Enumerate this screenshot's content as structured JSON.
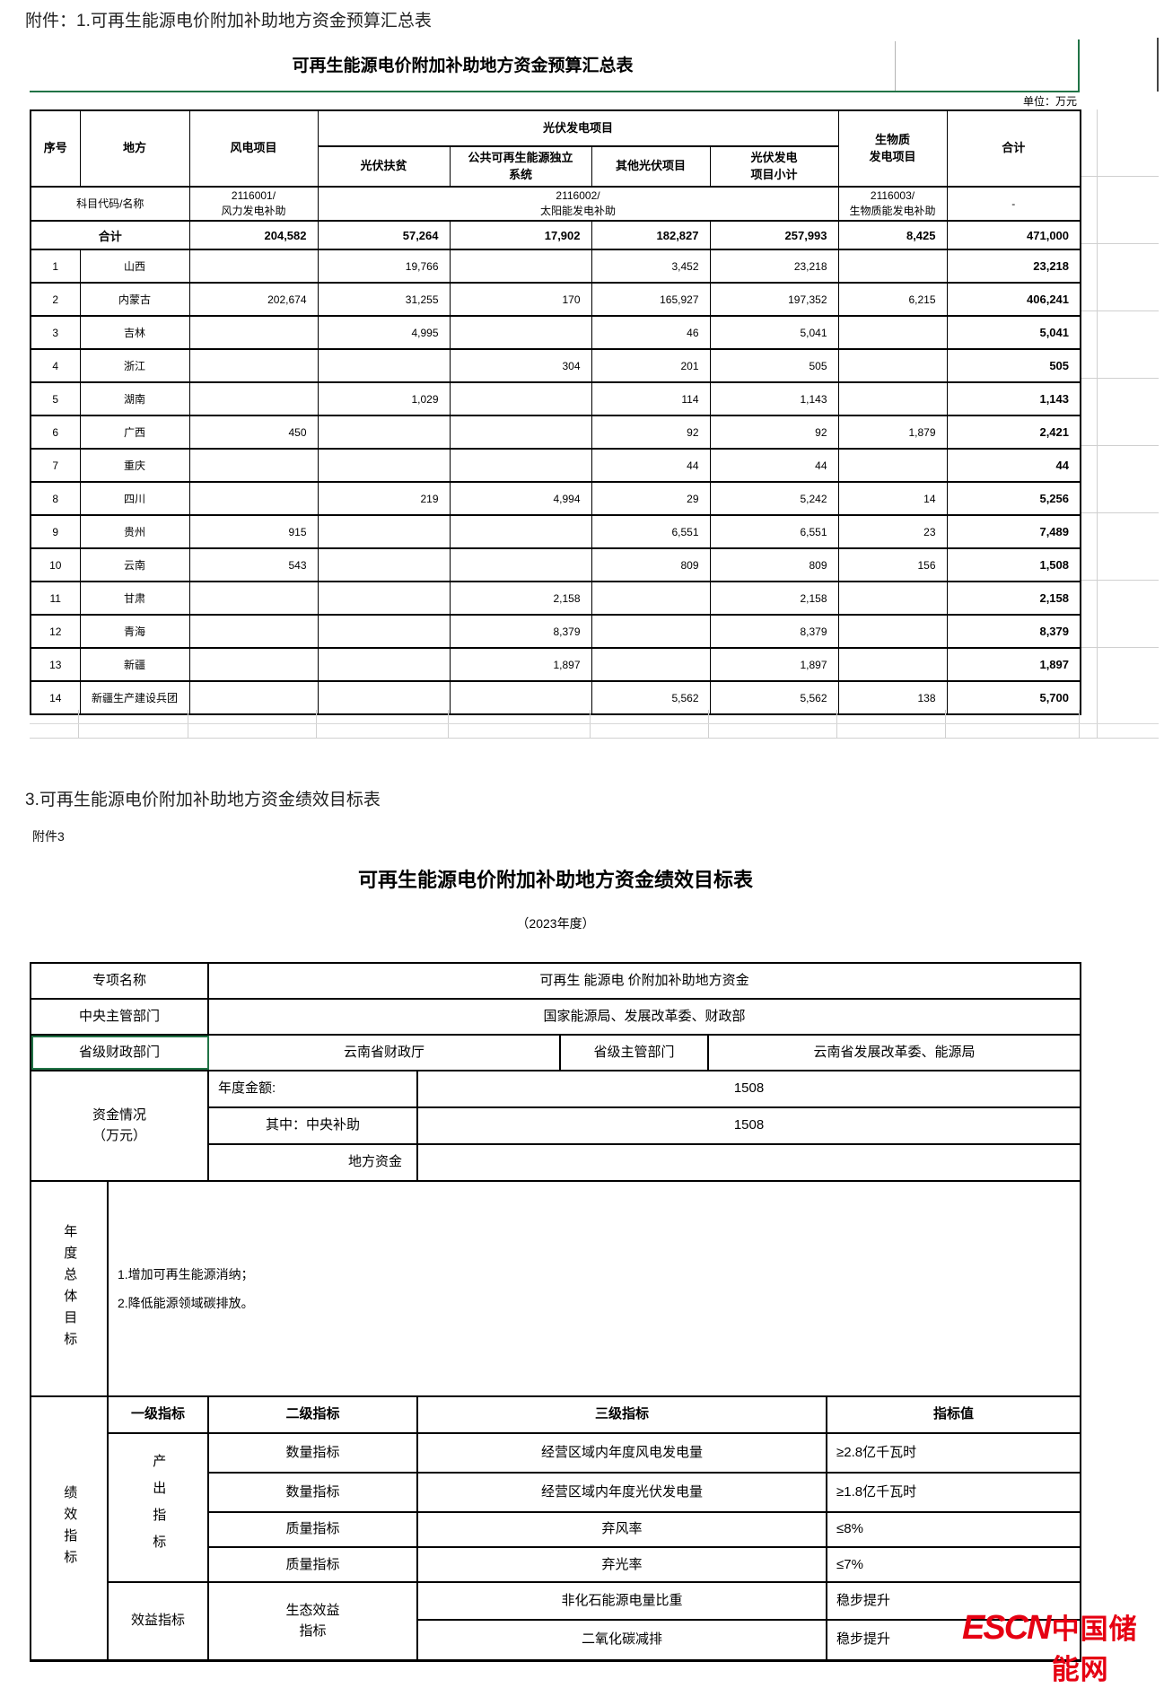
{
  "colors": {
    "excel_green": "#217346",
    "logo_red": "#e60012"
  },
  "page": {
    "attachment_heading": "附件：1.可再生能源电价附加补助地方资金预算汇总表",
    "section3_heading": "3.可再生能源电价附加补助地方资金绩效目标表",
    "attachment3_label": "附件3"
  },
  "budget_table": {
    "title": "可再生能源电价附加补助地方资金预算汇总表",
    "unit_note": "单位：万元",
    "headers": {
      "seq": "序号",
      "region": "地方",
      "wind": "风电项目",
      "pv_group": "光伏发电项目",
      "pv_poverty": "光伏扶贫",
      "pv_public": "公共可再生能源独立\n系统",
      "pv_other": "其他光伏项目",
      "pv_subtotal": "光伏发电\n项目小计",
      "biomass": "生物质\n发电项目",
      "total": "合计"
    },
    "subject_row": {
      "label": "科目代码/名称",
      "wind": "2116001/\n风力发电补助",
      "pv": "2116002/\n太阳能发电补助",
      "biomass": "2116003/\n生物质能发电补助",
      "total": "-"
    },
    "total_row": {
      "label": "合计",
      "wind": "204,582",
      "pv_poverty": "57,264",
      "pv_public": "17,902",
      "pv_other": "182,827",
      "pv_subtotal": "257,993",
      "biomass": "8,425",
      "total": "471,000"
    },
    "rows": [
      {
        "seq": "1",
        "region": "山西",
        "wind": "",
        "pv_poverty": "19,766",
        "pv_public": "",
        "pv_other": "3,452",
        "pv_subtotal": "23,218",
        "biomass": "",
        "total": "23,218"
      },
      {
        "seq": "2",
        "region": "内蒙古",
        "wind": "202,674",
        "pv_poverty": "31,255",
        "pv_public": "170",
        "pv_other": "165,927",
        "pv_subtotal": "197,352",
        "biomass": "6,215",
        "total": "406,241"
      },
      {
        "seq": "3",
        "region": "吉林",
        "wind": "",
        "pv_poverty": "4,995",
        "pv_public": "",
        "pv_other": "46",
        "pv_subtotal": "5,041",
        "biomass": "",
        "total": "5,041"
      },
      {
        "seq": "4",
        "region": "浙江",
        "wind": "",
        "pv_poverty": "",
        "pv_public": "304",
        "pv_other": "201",
        "pv_subtotal": "505",
        "biomass": "",
        "total": "505"
      },
      {
        "seq": "5",
        "region": "湖南",
        "wind": "",
        "pv_poverty": "1,029",
        "pv_public": "",
        "pv_other": "114",
        "pv_subtotal": "1,143",
        "biomass": "",
        "total": "1,143"
      },
      {
        "seq": "6",
        "region": "广西",
        "wind": "450",
        "pv_poverty": "",
        "pv_public": "",
        "pv_other": "92",
        "pv_subtotal": "92",
        "biomass": "1,879",
        "total": "2,421"
      },
      {
        "seq": "7",
        "region": "重庆",
        "wind": "",
        "pv_poverty": "",
        "pv_public": "",
        "pv_other": "44",
        "pv_subtotal": "44",
        "biomass": "",
        "total": "44"
      },
      {
        "seq": "8",
        "region": "四川",
        "wind": "",
        "pv_poverty": "219",
        "pv_public": "4,994",
        "pv_other": "29",
        "pv_subtotal": "5,242",
        "biomass": "14",
        "total": "5,256"
      },
      {
        "seq": "9",
        "region": "贵州",
        "wind": "915",
        "pv_poverty": "",
        "pv_public": "",
        "pv_other": "6,551",
        "pv_subtotal": "6,551",
        "biomass": "23",
        "total": "7,489"
      },
      {
        "seq": "10",
        "region": "云南",
        "wind": "543",
        "pv_poverty": "",
        "pv_public": "",
        "pv_other": "809",
        "pv_subtotal": "809",
        "biomass": "156",
        "total": "1,508"
      },
      {
        "seq": "11",
        "region": "甘肃",
        "wind": "",
        "pv_poverty": "",
        "pv_public": "2,158",
        "pv_other": "",
        "pv_subtotal": "2,158",
        "biomass": "",
        "total": "2,158"
      },
      {
        "seq": "12",
        "region": "青海",
        "wind": "",
        "pv_poverty": "",
        "pv_public": "8,379",
        "pv_other": "",
        "pv_subtotal": "8,379",
        "biomass": "",
        "total": "8,379"
      },
      {
        "seq": "13",
        "region": "新疆",
        "wind": "",
        "pv_poverty": "",
        "pv_public": "1,897",
        "pv_other": "",
        "pv_subtotal": "1,897",
        "biomass": "",
        "total": "1,897"
      },
      {
        "seq": "14",
        "region": "新疆生产建设兵团",
        "wind": "",
        "pv_poverty": "",
        "pv_public": "",
        "pv_other": "5,562",
        "pv_subtotal": "5,562",
        "biomass": "138",
        "total": "5,700"
      }
    ]
  },
  "performance_table": {
    "title": "可再生能源电价附加补助地方资金绩效目标表",
    "year_note": "（2023年度）",
    "basic": {
      "project_name_label": "专项名称",
      "project_name": "可再生 能源电 价附加补助地方资金",
      "central_dept_label": "中央主管部门",
      "central_dept": "国家能源局、发展改革委、财政部",
      "provincial_finance_label": "省级财政部门",
      "provincial_finance": "云南省财政厅",
      "provincial_dept_label": "省级主管部门",
      "provincial_dept": "云南省发展改革委、能源局"
    },
    "funds": {
      "label": "资金情况\n（万元）",
      "annual_label": "年度金额:",
      "annual_value": "1508",
      "central_label": "其中：中央补助",
      "central_value": "1508",
      "local_label": "地方资金",
      "local_value": ""
    },
    "annual_goal": {
      "label": "年度总体目标",
      "content": "1.增加可再生能源消纳；\n2.降低能源领域碳排放。"
    },
    "indicators": {
      "label": "绩效指标",
      "header": {
        "l1": "一级指标",
        "l2": "二级指标",
        "l3": "三级指标",
        "value": "指标值"
      },
      "output_group_label": "产出指标",
      "benefit_group_label": "效益指标",
      "eco_label": "生态效益\n指标",
      "rows": [
        {
          "l2": "数量指标",
          "l3": "经营区域内年度风电发电量",
          "value": "≥2.8亿千瓦时"
        },
        {
          "l2": "数量指标",
          "l3": "经营区域内年度光伏发电量",
          "value": "≥1.8亿千瓦时"
        },
        {
          "l2": "质量指标",
          "l3": "弃风率",
          "value": "≤8%"
        },
        {
          "l2": "质量指标",
          "l3": "弃光率",
          "value": "≤7%"
        }
      ],
      "benefit_rows": [
        {
          "l3": "非化石能源电量比重",
          "value": "稳步提升"
        },
        {
          "l3": "二氧化碳减排",
          "value": "稳步提升"
        }
      ]
    }
  },
  "logo": {
    "text_en": "ESCN",
    "text_cn": "中国储能网"
  }
}
